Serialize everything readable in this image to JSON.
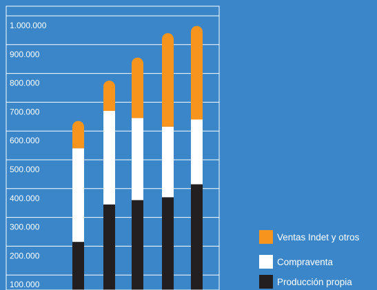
{
  "colors": {
    "background": "#3a86c8",
    "plot_border": "#ffffff",
    "gridline": "#ffffff",
    "tick_text": "#ffffff"
  },
  "chart_data": {
    "type": "bar",
    "stacked": true,
    "title": "",
    "xlabel": "",
    "ylabel": "",
    "ylim": [
      0,
      1000000
    ],
    "yticks": [
      "100.000",
      "200.000",
      "300.000",
      "400.000",
      "500.000",
      "600.000",
      "700.000",
      "800.000",
      "900.000",
      "1.000.000"
    ],
    "ytick_values": [
      100000,
      200000,
      300000,
      400000,
      500000,
      600000,
      700000,
      800000,
      900000,
      1000000
    ],
    "categories": [
      "",
      "",
      "",
      "",
      ""
    ],
    "grid": true,
    "legend_position": "bottom-right",
    "series": [
      {
        "name": "Producción propia",
        "color": "#231f20",
        "values": [
          215000,
          345000,
          360000,
          370000,
          415000
        ]
      },
      {
        "name": "Compraventa",
        "color": "#ffffff",
        "values": [
          325000,
          325000,
          285000,
          245000,
          225000
        ]
      },
      {
        "name": "Ventas Indet y otros",
        "color": "#f7941d",
        "values": [
          95000,
          105000,
          210000,
          325000,
          325000
        ]
      }
    ]
  }
}
